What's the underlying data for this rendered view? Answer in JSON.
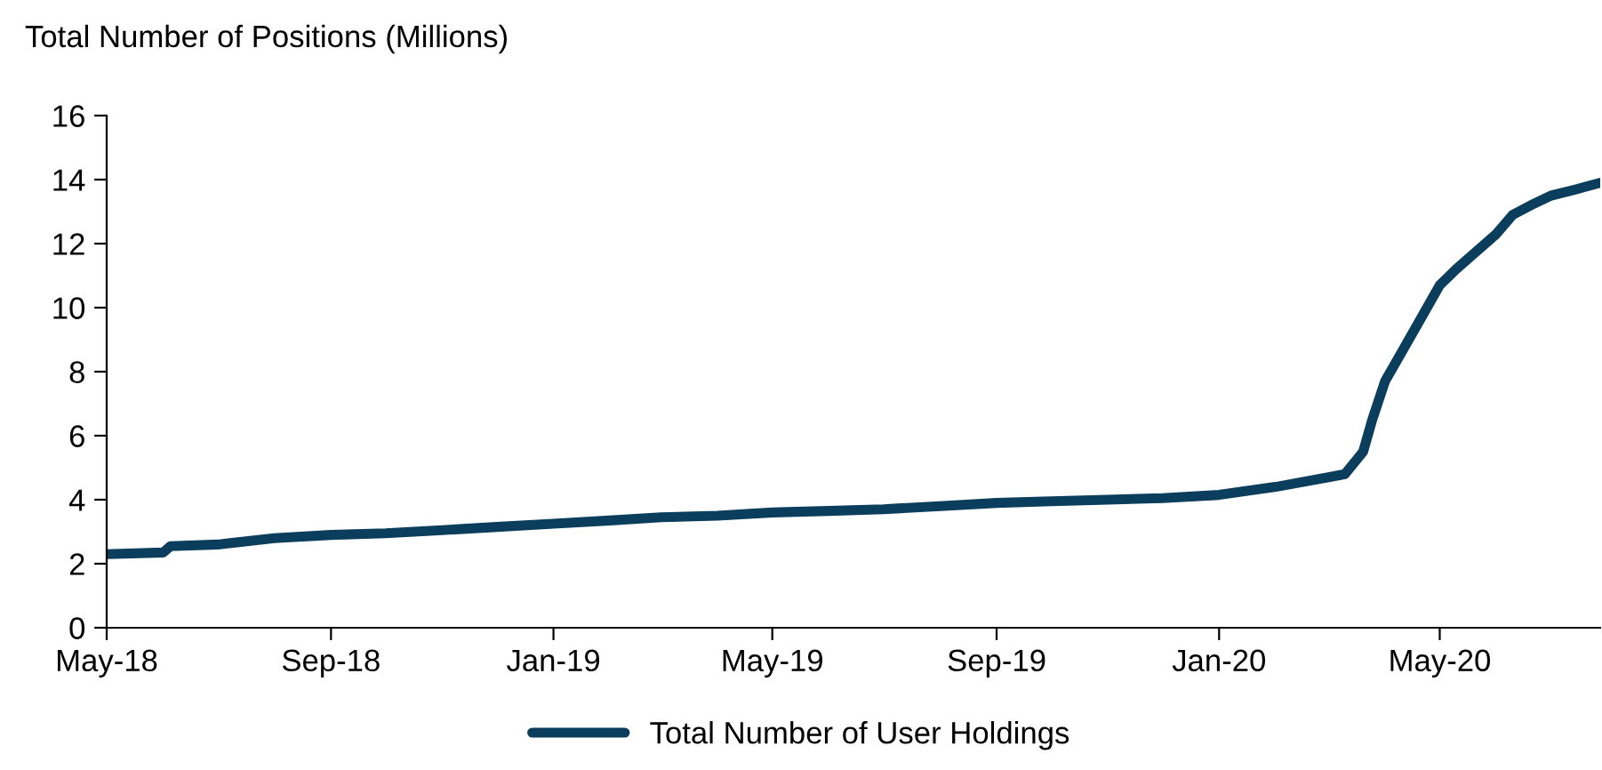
{
  "chart_data": {
    "type": "line",
    "title": "Total Number of Positions (Millions)",
    "x": [
      "2018-05-01",
      "2018-06-01",
      "2018-06-05",
      "2018-07-01",
      "2018-08-01",
      "2018-09-01",
      "2018-10-01",
      "2018-11-01",
      "2018-12-01",
      "2019-01-01",
      "2019-02-01",
      "2019-03-01",
      "2019-04-01",
      "2019-05-01",
      "2019-06-01",
      "2019-07-01",
      "2019-08-01",
      "2019-09-01",
      "2019-10-01",
      "2019-11-01",
      "2019-12-01",
      "2020-01-01",
      "2020-02-01",
      "2020-03-01",
      "2020-03-10",
      "2020-03-20",
      "2020-03-25",
      "2020-04-01",
      "2020-04-10",
      "2020-04-20",
      "2020-05-01",
      "2020-05-10",
      "2020-05-20",
      "2020-06-01",
      "2020-06-10",
      "2020-06-20",
      "2020-07-01",
      "2020-07-15",
      "2020-07-28"
    ],
    "series": [
      {
        "name": "Total Number of User Holdings",
        "color": "#0b3d5c",
        "values": [
          2.3,
          2.35,
          2.55,
          2.6,
          2.8,
          2.9,
          2.95,
          3.05,
          3.15,
          3.25,
          3.35,
          3.45,
          3.5,
          3.6,
          3.65,
          3.7,
          3.8,
          3.9,
          3.95,
          4.0,
          4.05,
          4.15,
          4.4,
          4.7,
          4.8,
          5.5,
          6.5,
          7.7,
          8.6,
          9.6,
          10.7,
          11.2,
          11.7,
          12.3,
          12.9,
          13.2,
          13.5,
          13.7,
          13.9
        ]
      }
    ],
    "xlim": [
      "2018-05-01",
      "2020-07-28"
    ],
    "xticks": [
      {
        "value": "2018-05-01",
        "label": "May-18"
      },
      {
        "value": "2018-09-01",
        "label": "Sep-18"
      },
      {
        "value": "2019-01-01",
        "label": "Jan-19"
      },
      {
        "value": "2019-05-01",
        "label": "May-19"
      },
      {
        "value": "2019-09-01",
        "label": "Sep-19"
      },
      {
        "value": "2020-01-01",
        "label": "Jan-20"
      },
      {
        "value": "2020-05-01",
        "label": "May-20"
      }
    ],
    "ylim": [
      0,
      16
    ],
    "yticks": [
      0,
      2,
      4,
      6,
      8,
      10,
      12,
      14,
      16
    ],
    "grid": false,
    "legend": "bottom",
    "marker": "none",
    "line_style": "solid"
  }
}
